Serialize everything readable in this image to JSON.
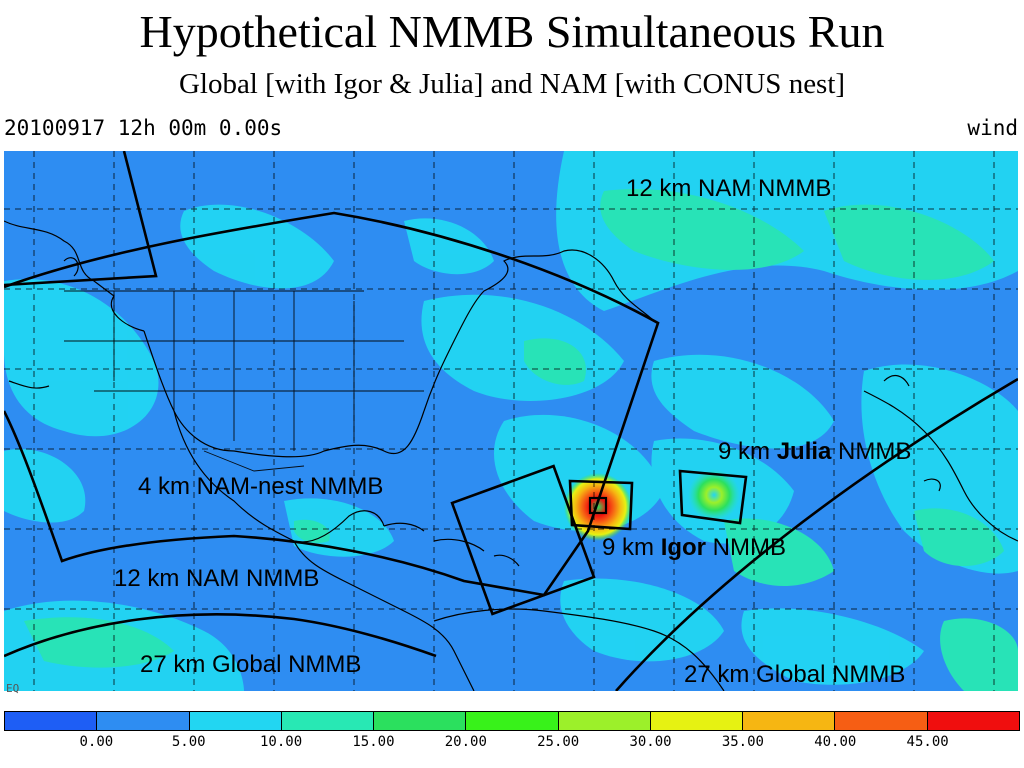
{
  "header": {
    "title": "Hypothetical NMMB Simultaneous Run",
    "subtitle": "Global [with Igor & Julia] and NAM [with CONUS nest]",
    "datestamp": "20100917 12h 00m  0.00s",
    "field": "wind"
  },
  "map": {
    "labels": {
      "nam_top": "12 km NAM NMMB",
      "julia_prefix": "9 km ",
      "julia_name": "Julia",
      "julia_suffix": " NMMB",
      "nest": "4 km NAM-nest NMMB",
      "igor_prefix": "9 km ",
      "igor_name": "Igor",
      "igor_suffix": " NMMB",
      "nam_bottom": "12 km NAM NMMB",
      "global_left": "27 km Global NMMB",
      "global_right": "27 km Global NMMB"
    },
    "corner_mark": "EQ"
  },
  "colorbar": {
    "colors": [
      "#1e5ef5",
      "#2e8df2",
      "#22d6f2",
      "#28e8b4",
      "#2be05e",
      "#38f21a",
      "#9cf02a",
      "#e6f212",
      "#f6b612",
      "#f65e14",
      "#f00e0e"
    ],
    "ticks": [
      "0.00",
      "5.00",
      "10.00",
      "15.00",
      "20.00",
      "25.00",
      "30.00",
      "35.00",
      "40.00",
      "45.00"
    ]
  }
}
